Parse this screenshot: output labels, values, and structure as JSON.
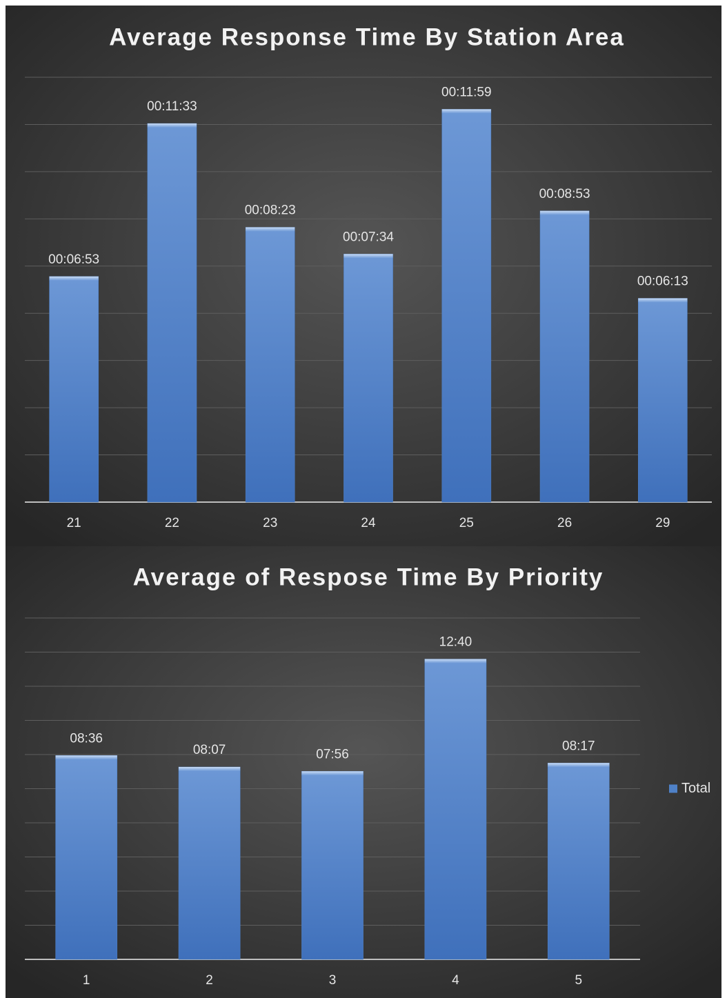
{
  "chart_data": [
    {
      "type": "bar",
      "title": "Average Response Time By Station Area",
      "categories": [
        "21",
        "22",
        "23",
        "24",
        "25",
        "26",
        "29"
      ],
      "values": [
        413,
        693,
        503,
        454,
        719,
        533,
        373
      ],
      "value_labels": [
        "00:06:53",
        "00:11:33",
        "00:08:23",
        "00:07:34",
        "00:11:59",
        "00:08:53",
        "00:06:13"
      ],
      "color": "#4f81c7",
      "ylim": [
        0,
        777.6
      ],
      "yticks": [
        0,
        86.4,
        172.8,
        259.2,
        345.6,
        432,
        518.4,
        604.8,
        691.2,
        777.6
      ],
      "grid": true
    },
    {
      "type": "bar",
      "title": "Average of Respose Time By Priority",
      "categories": [
        "1",
        "2",
        "3",
        "4",
        "5"
      ],
      "series": [
        {
          "name": "Total",
          "color": "#4f81c7",
          "values": [
            516,
            487,
            476,
            760,
            497
          ],
          "value_labels": [
            "08:36",
            "08:07",
            "07:56",
            "12:40",
            "08:17"
          ]
        }
      ],
      "ylim": [
        0,
        864
      ],
      "yticks": [
        0,
        86.4,
        172.8,
        259.2,
        345.6,
        432,
        518.4,
        604.8,
        691.2,
        777.6,
        864
      ],
      "grid": true,
      "legend": "right"
    }
  ]
}
